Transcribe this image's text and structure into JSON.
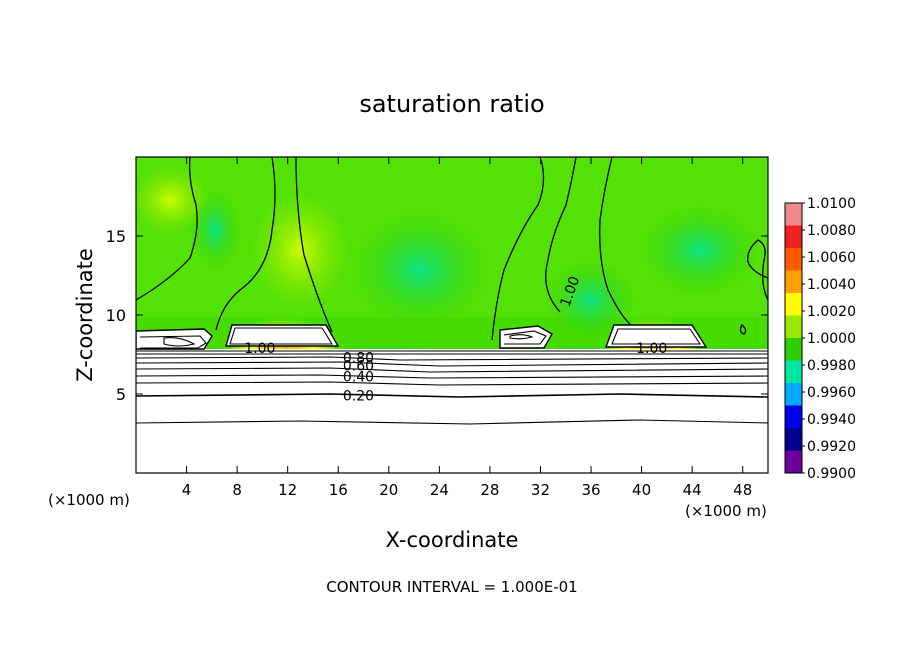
{
  "chart_data": {
    "type": "heatmap",
    "title": "saturation ratio",
    "xlabel": "X-coordinate",
    "ylabel": "Z-coordinate",
    "x_unit_left": "(×1000 m)",
    "x_unit_right": "(×1000 m)",
    "footer": "CONTOUR INTERVAL = 1.000E-01",
    "xlim": [
      0,
      50
    ],
    "ylim": [
      0,
      20
    ],
    "x_ticks": [
      4,
      8,
      12,
      16,
      20,
      24,
      28,
      32,
      36,
      40,
      44,
      48
    ],
    "y_ticks": [
      5,
      10,
      15
    ],
    "colorbar": {
      "labels": [
        "1.0100",
        "1.0080",
        "1.0060",
        "1.0040",
        "1.0020",
        "1.0000",
        "0.9980",
        "0.9960",
        "0.9940",
        "0.9920",
        "0.9900"
      ],
      "colors": [
        "#f08a8a",
        "#ee2020",
        "#ff5a00",
        "#ffa000",
        "#ffff00",
        "#9be800",
        "#2ecc00",
        "#00e6a0",
        "#00a8ff",
        "#0000e8",
        "#000090",
        "#6a00a0"
      ]
    },
    "contour_labels": [
      {
        "text": "1.00",
        "x": 9.8,
        "y": 7.9
      },
      {
        "text": "1.00",
        "x": 40.8,
        "y": 7.9
      },
      {
        "text": "1.00",
        "x": 34.3,
        "y": 11.5
      },
      {
        "text": "0.80",
        "x": 17.6,
        "y": 7.3
      },
      {
        "text": "0.60",
        "x": 17.6,
        "y": 6.8
      },
      {
        "text": "0.40",
        "x": 17.6,
        "y": 6.1
      },
      {
        "text": "0.20",
        "x": 17.6,
        "y": 4.9
      }
    ],
    "background_saturation": 1.0,
    "cloud_regions": [
      {
        "x_start": 0.2,
        "x_end": 6.0,
        "saturation": 1.0
      },
      {
        "x_start": 7.0,
        "x_end": 15.5,
        "saturation": 1.0
      },
      {
        "x_start": 28.0,
        "x_end": 33.0,
        "saturation": 1.0
      },
      {
        "x_start": 37.5,
        "x_end": 44.5,
        "saturation": 1.0
      }
    ],
    "subsaturated_contours": [
      0.2,
      0.4,
      0.6,
      0.8
    ]
  }
}
